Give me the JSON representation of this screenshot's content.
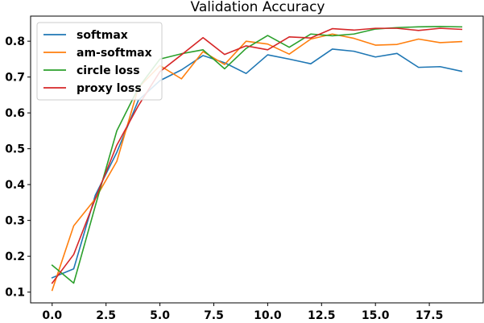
{
  "chart_data": {
    "type": "line",
    "title": "Validation Accuracy",
    "xlabel": "",
    "ylabel": "",
    "xlim": [
      -1,
      20
    ],
    "ylim": [
      0.07,
      0.87
    ],
    "x_ticks": [
      0.0,
      2.5,
      5.0,
      7.5,
      10.0,
      12.5,
      15.0,
      17.5
    ],
    "x_tick_labels": [
      "0.0",
      "2.5",
      "5.0",
      "7.5",
      "10.0",
      "12.5",
      "15.0",
      "17.5"
    ],
    "y_ticks": [
      0.1,
      0.2,
      0.3,
      0.4,
      0.5,
      0.6,
      0.7,
      0.8
    ],
    "y_tick_labels": [
      "0.1",
      "0.2",
      "0.3",
      "0.4",
      "0.5",
      "0.6",
      "0.7",
      "0.8"
    ],
    "grid": false,
    "legend_position": "top-left",
    "x": [
      0,
      1,
      2,
      3,
      4,
      5,
      6,
      7,
      8,
      9,
      10,
      11,
      12,
      13,
      14,
      15,
      16,
      17,
      18,
      19
    ],
    "series": [
      {
        "name": "softmax",
        "color": "#1f77b4",
        "values": [
          0.14,
          0.165,
          0.37,
          0.49,
          0.635,
          0.69,
          0.72,
          0.76,
          0.74,
          0.71,
          0.762,
          0.75,
          0.737,
          0.778,
          0.772,
          0.756,
          0.766,
          0.727,
          0.729,
          0.716
        ]
      },
      {
        "name": "am-softmax",
        "color": "#ff7f0e",
        "values": [
          0.105,
          0.285,
          0.36,
          0.465,
          0.67,
          0.732,
          0.695,
          0.771,
          0.735,
          0.8,
          0.792,
          0.764,
          0.806,
          0.82,
          0.808,
          0.789,
          0.791,
          0.806,
          0.796,
          0.799
        ]
      },
      {
        "name": "circle loss",
        "color": "#2ca02c",
        "values": [
          0.175,
          0.125,
          0.34,
          0.55,
          0.67,
          0.75,
          0.765,
          0.776,
          0.723,
          0.78,
          0.816,
          0.783,
          0.82,
          0.815,
          0.82,
          0.834,
          0.838,
          0.84,
          0.841,
          0.84
        ]
      },
      {
        "name": "proxy loss",
        "color": "#d62728",
        "values": [
          0.125,
          0.205,
          0.36,
          0.51,
          0.62,
          0.715,
          0.762,
          0.81,
          0.763,
          0.787,
          0.776,
          0.812,
          0.809,
          0.835,
          0.831,
          0.836,
          0.836,
          0.83,
          0.836,
          0.833
        ]
      }
    ]
  }
}
